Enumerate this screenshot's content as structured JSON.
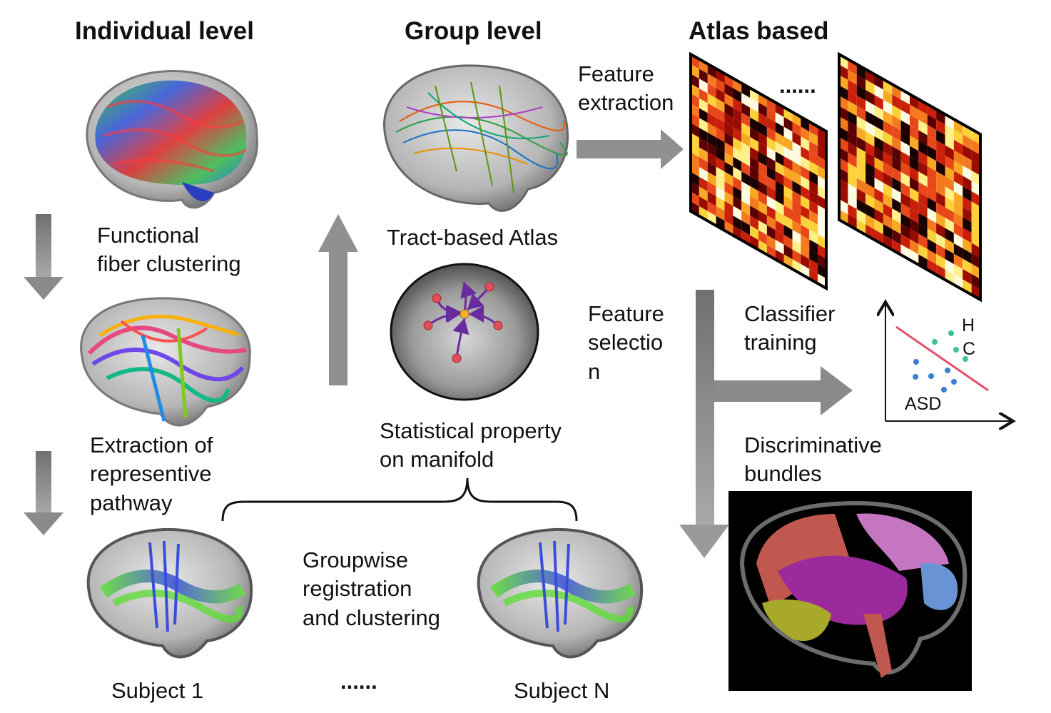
{
  "headings": {
    "individual": "Individual level",
    "group": "Group level",
    "atlas": "Atlas based"
  },
  "labels": {
    "functional_fiber_clustering": "Functional\nfiber clustering",
    "extraction_pathway": "Extraction of\nrepresentive\npathway",
    "tract_atlas": "Tract-based Atlas",
    "statistical_property": "Statistical property\non manifold",
    "groupwise": "Groupwise\nregistration\nand clustering",
    "subject_1": "Subject 1",
    "subject_n": "Subject N",
    "subject_ellipsis": "......",
    "feature_extraction": "Feature\nextraction",
    "matrix_ellipsis": "......",
    "feature_selection": "Feature\nselectio\nn",
    "classifier_training": "Classifier\ntraining",
    "discriminative_bundles": "Discriminative\nbundles"
  },
  "scatter": {
    "label_hc_line1": "H",
    "label_hc_line2": "C",
    "label_asd": "ASD",
    "hc_color": "#3fc48a",
    "asd_color": "#3a7fd5",
    "boundary_color": "#e2506a"
  },
  "colors": {
    "arrow_gray": "#8a8a8a",
    "manifold_point": "#e0505a",
    "manifold_center": "#f0b030",
    "manifold_path": "#6a2aa0"
  }
}
